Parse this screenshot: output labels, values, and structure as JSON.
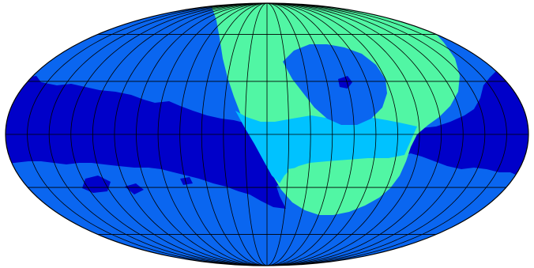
{
  "map": {
    "projection": "mollweide",
    "graticule": {
      "meridians_deg": [
        -165,
        -150,
        -135,
        -120,
        -105,
        -90,
        -75,
        -60,
        -45,
        -30,
        -15,
        0,
        15,
        30,
        45,
        60,
        75,
        90,
        105,
        120,
        135,
        150,
        165
      ],
      "parallels_deg": [
        -60,
        -30,
        0,
        30,
        60
      ]
    },
    "colors": {
      "background": "#ffffff",
      "outline": "#000000",
      "graticule": "#000000",
      "base_region": "#0a66f0",
      "galactic_band": "#0000c9",
      "bright_region": "#51f6a4",
      "overlap_region": "#00c2ff"
    }
  }
}
